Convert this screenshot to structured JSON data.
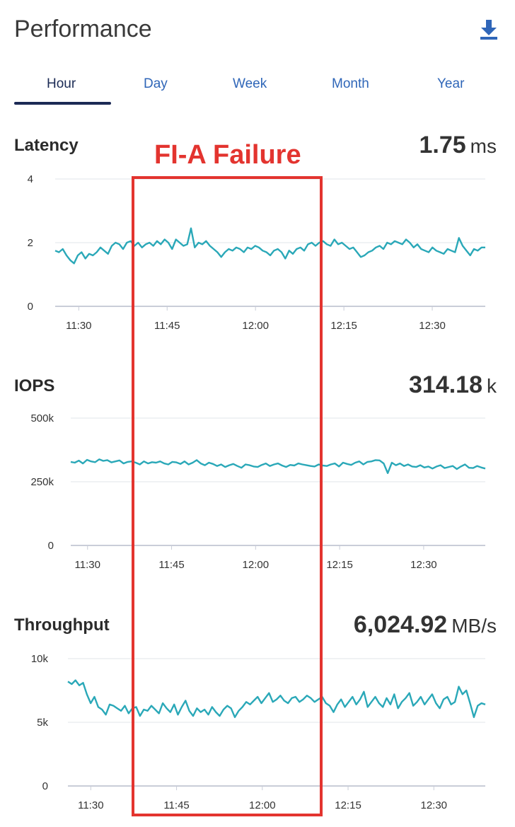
{
  "header": {
    "title": "Performance",
    "download_icon": "download-icon"
  },
  "tabs": [
    {
      "label": "Hour",
      "active": true
    },
    {
      "label": "Day",
      "active": false
    },
    {
      "label": "Week",
      "active": false
    },
    {
      "label": "Month",
      "active": false
    },
    {
      "label": "Year",
      "active": false
    }
  ],
  "metrics": {
    "latency": {
      "title": "Latency",
      "value": "1.75",
      "unit": "ms"
    },
    "iops": {
      "title": "IOPS",
      "value": "314.18",
      "unit": "k"
    },
    "throughput": {
      "title": "Throughput",
      "value": "6,024.92",
      "unit": "MB/s"
    }
  },
  "annotation": {
    "label": "FI-A Failure"
  },
  "colors": {
    "series": "#2aa8b8",
    "annotation": "#e3342f",
    "tab_active": "#1b2b55",
    "tab_inactive": "#2f66b8"
  },
  "chart_data": [
    {
      "type": "line",
      "title": "Latency",
      "x_ticks": [
        "11:30",
        "11:45",
        "12:00",
        "12:15",
        "12:30"
      ],
      "y_ticks": [
        "0",
        "2",
        "4"
      ],
      "ylim": [
        0,
        4
      ],
      "xlim": [
        "11:26",
        "12:39"
      ],
      "series": [
        {
          "values": [
            1.75,
            1.7,
            1.8,
            1.6,
            1.45,
            1.35,
            1.6,
            1.7,
            1.5,
            1.65,
            1.6,
            1.7,
            1.85,
            1.75,
            1.65,
            1.9,
            2.0,
            1.95,
            1.8,
            2.0,
            2.05,
            1.9,
            2.0,
            1.85,
            1.95,
            2.0,
            1.9,
            2.05,
            1.95,
            2.1,
            2.0,
            1.8,
            2.1,
            2.0,
            1.9,
            1.95,
            2.45,
            1.85,
            2.0,
            1.95,
            2.05,
            1.9,
            1.8,
            1.7,
            1.55,
            1.7,
            1.8,
            1.75,
            1.85,
            1.8,
            1.7,
            1.85,
            1.8,
            1.9,
            1.85,
            1.75,
            1.7,
            1.6,
            1.75,
            1.8,
            1.7,
            1.5,
            1.75,
            1.65,
            1.8,
            1.85,
            1.75,
            1.95,
            2.0,
            1.9,
            2.0,
            2.05,
            1.95,
            1.9,
            2.1,
            1.95,
            2.0,
            1.9,
            1.8,
            1.85,
            1.7,
            1.55,
            1.6,
            1.7,
            1.75,
            1.85,
            1.9,
            1.8,
            2.0,
            1.95,
            2.05,
            2.0,
            1.95,
            2.1,
            2.0,
            1.85,
            1.95,
            1.8,
            1.75,
            1.7,
            1.85,
            1.75,
            1.7,
            1.65,
            1.8,
            1.75,
            1.7,
            2.15,
            1.9,
            1.75,
            1.6,
            1.8,
            1.75,
            1.85,
            1.85
          ]
        }
      ]
    },
    {
      "type": "line",
      "title": "IOPS",
      "x_ticks": [
        "11:30",
        "11:45",
        "12:00",
        "12:15",
        "12:30"
      ],
      "y_ticks": [
        "0",
        "250k",
        "500k"
      ],
      "ylim": [
        0,
        500
      ],
      "xlim": [
        "11:27",
        "12:41"
      ],
      "series": [
        {
          "values": [
            328,
            325,
            333,
            322,
            336,
            330,
            327,
            338,
            332,
            335,
            326,
            330,
            334,
            322,
            328,
            330,
            325,
            318,
            330,
            322,
            327,
            325,
            330,
            322,
            318,
            328,
            326,
            320,
            330,
            318,
            325,
            335,
            322,
            315,
            325,
            320,
            312,
            318,
            308,
            315,
            320,
            312,
            305,
            318,
            315,
            310,
            308,
            316,
            322,
            312,
            318,
            322,
            314,
            308,
            316,
            314,
            322,
            318,
            315,
            312,
            310,
            318,
            314,
            312,
            318,
            322,
            310,
            325,
            320,
            316,
            325,
            330,
            318,
            328,
            330,
            335,
            334,
            322,
            284,
            325,
            315,
            322,
            312,
            318,
            310,
            308,
            315,
            306,
            310,
            302,
            310,
            315,
            304,
            308,
            312,
            300,
            310,
            318,
            305,
            304,
            312,
            306,
            302
          ]
        }
      ]
    },
    {
      "type": "line",
      "title": "Throughput",
      "x_ticks": [
        "11:30",
        "11:45",
        "12:00",
        "12:15",
        "12:30"
      ],
      "y_ticks": [
        "0",
        "5k",
        "10k"
      ],
      "ylim": [
        0,
        10
      ],
      "xlim": [
        "11:26",
        "12:39"
      ],
      "series": [
        {
          "values": [
            8.2,
            8.0,
            8.3,
            7.9,
            8.1,
            7.2,
            6.5,
            7.0,
            6.2,
            6.0,
            5.6,
            6.4,
            6.3,
            6.1,
            5.9,
            6.3,
            5.7,
            6.1,
            6.2,
            5.5,
            6.0,
            5.9,
            6.3,
            6.0,
            5.7,
            6.5,
            6.1,
            5.8,
            6.4,
            5.6,
            6.2,
            6.7,
            5.9,
            5.5,
            6.1,
            5.8,
            6.0,
            5.6,
            6.2,
            5.8,
            5.5,
            6.0,
            6.3,
            6.1,
            5.4,
            5.9,
            6.2,
            6.6,
            6.4,
            6.7,
            7.0,
            6.5,
            6.9,
            7.3,
            6.6,
            6.8,
            7.1,
            6.7,
            6.5,
            6.9,
            7.0,
            6.6,
            6.8,
            7.1,
            6.9,
            6.6,
            6.8,
            7.0,
            6.5,
            6.3,
            5.8,
            6.4,
            6.8,
            6.2,
            6.6,
            7.0,
            6.4,
            6.8,
            7.4,
            6.2,
            6.6,
            7.0,
            6.5,
            6.2,
            6.9,
            6.4,
            7.2,
            6.1,
            6.6,
            6.9,
            7.3,
            6.3,
            6.6,
            7.0,
            6.4,
            6.8,
            7.2,
            6.5,
            6.1,
            6.8,
            7.0,
            6.4,
            6.6,
            7.8,
            7.2,
            7.5,
            6.5,
            5.4,
            6.3,
            6.5,
            6.4
          ]
        }
      ]
    }
  ]
}
